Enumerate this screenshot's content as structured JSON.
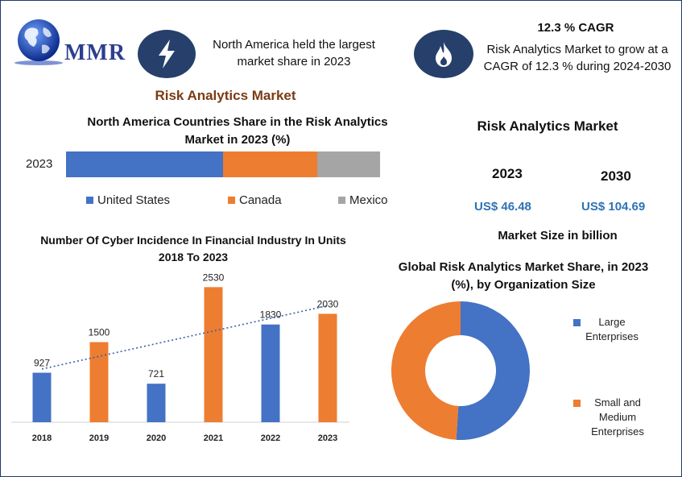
{
  "logo": {
    "text": "MMR"
  },
  "headline_left": "North America held the largest market share in 2023",
  "cagr": {
    "title": "12.3 % CAGR",
    "text": "Risk Analytics Market to grow at a CAGR of 12.3 % during 2024-2030"
  },
  "main_title": "Risk Analytics Market",
  "stacked": {
    "title": "North America Countries Share in the  Risk Analytics Market  in 2023 (%)"
  },
  "cyber": {
    "title": "Number Of Cyber Incidence In  Financial Industry In Units 2018 To 2023"
  },
  "market_size": {
    "title": "Risk Analytics Market",
    "year1": "2023",
    "value1": "US$ 46.48",
    "year2": "2030",
    "value2": "US$ 104.69",
    "unit": "Market Size in billion"
  },
  "donut": {
    "title": "Global Risk Analytics  Market  Share, in 2023 (%), by Organization  Size"
  },
  "colors": {
    "blue": "#4472c4",
    "orange": "#ed7d31",
    "gray": "#a5a5a5",
    "navy": "#26406b"
  },
  "icons": {
    "lightning": "lightning-icon",
    "flame": "flame-icon",
    "globe": "globe-icon"
  },
  "chart_data": [
    {
      "type": "bar",
      "orientation": "horizontal-stacked",
      "categories": [
        "2023"
      ],
      "series": [
        {
          "name": "United States",
          "values": [
            50
          ]
        },
        {
          "name": "Canada",
          "values": [
            30
          ]
        },
        {
          "name": "Mexico",
          "values": [
            20
          ]
        }
      ],
      "legend": "bottom"
    },
    {
      "type": "bar",
      "categories": [
        "2018",
        "2019",
        "2020",
        "2021",
        "2022",
        "2023"
      ],
      "values": [
        927,
        1500,
        721,
        2530,
        1830,
        2030
      ],
      "data_labels": [
        "927",
        "1500",
        "721",
        "2530",
        "1830",
        "2030"
      ],
      "trendline": "linear",
      "ylim": [
        0,
        2700
      ],
      "grid": false
    },
    {
      "type": "pie",
      "style": "donut",
      "labels": [
        "Large Enterprises",
        "Small and Medium Enterprises"
      ],
      "values": [
        51,
        49
      ],
      "legend": "right"
    }
  ]
}
